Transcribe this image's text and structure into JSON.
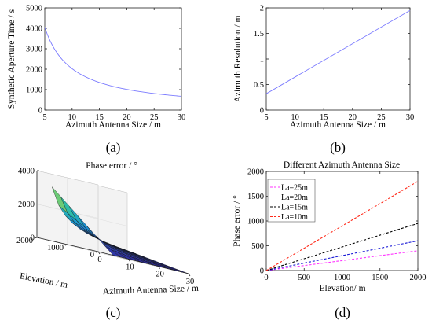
{
  "chart_data": [
    {
      "id": "a",
      "type": "line",
      "caption": "(a)",
      "xlabel": "Azimuth Antenna Size / m",
      "ylabel": "Synthetic Aperture Time / s",
      "xlim": [
        5,
        30
      ],
      "ylim": [
        0,
        5000
      ],
      "xticks": [
        "5",
        "10",
        "15",
        "20",
        "25",
        "30"
      ],
      "yticks": [
        "0",
        "1000",
        "2000",
        "3000",
        "4000",
        "5000"
      ],
      "grid": false,
      "color": "#7b7bff",
      "x": [
        5,
        6,
        7,
        8,
        9,
        10,
        12,
        14,
        16,
        18,
        20,
        22,
        24,
        26,
        28,
        30
      ],
      "y": [
        4050,
        3375,
        2893,
        2531,
        2250,
        2025,
        1688,
        1446,
        1266,
        1125,
        1013,
        920,
        844,
        779,
        723,
        675
      ]
    },
    {
      "id": "b",
      "type": "line",
      "caption": "(b)",
      "xlabel": "Azimuth Antenna Size / m",
      "ylabel": "Azimuth Resolution / m",
      "xlim": [
        5,
        30
      ],
      "ylim": [
        0,
        2
      ],
      "xticks": [
        "5",
        "10",
        "15",
        "20",
        "25",
        "30"
      ],
      "yticks": [
        "0",
        "0.5",
        "1",
        "1.5",
        "2"
      ],
      "grid": false,
      "color": "#7b7bff",
      "x": [
        5,
        30
      ],
      "y": [
        0.32,
        1.95
      ]
    },
    {
      "id": "c",
      "type": "surface",
      "caption": "(c)",
      "title": "Phase error / °",
      "xlabel": "Azimuth Antenna Size / m",
      "ylabel": "Elevation / m",
      "xlim": [
        0,
        30
      ],
      "ylim": [
        0,
        2000
      ],
      "zlim": [
        0,
        4000
      ],
      "xticks": [
        "0",
        "10",
        "20",
        "30"
      ],
      "yticks": [
        "0",
        "1000",
        "2000"
      ],
      "zticks": [
        "0",
        "2000",
        "4000"
      ],
      "grid": true,
      "peak": 3250
    },
    {
      "id": "d",
      "type": "line",
      "caption": "(d)",
      "title": "Different Azimuth Antenna Size",
      "xlabel": "Elevation/ m",
      "ylabel": "Phase error / °",
      "xlim": [
        0,
        2000
      ],
      "ylim": [
        0,
        2000
      ],
      "xticks": [
        "0",
        "500",
        "1000",
        "1500",
        "2000"
      ],
      "yticks": [
        "0",
        "500",
        "1000",
        "1500",
        "2000"
      ],
      "grid": false,
      "legend_position": "top-left",
      "x": [
        0,
        500,
        1000,
        1500,
        2000
      ],
      "series": [
        {
          "name": "La=25m",
          "color": "#ff33ff",
          "values": [
            0,
            100,
            200,
            300,
            400
          ]
        },
        {
          "name": "La=20m",
          "color": "#1a1ad6",
          "values": [
            0,
            150,
            300,
            450,
            600
          ]
        },
        {
          "name": "La=15m",
          "color": "#000000",
          "values": [
            0,
            238,
            475,
            713,
            950
          ]
        },
        {
          "name": "La=10m",
          "color": "#ff2a1a",
          "values": [
            0,
            450,
            900,
            1350,
            1800
          ]
        }
      ]
    }
  ]
}
